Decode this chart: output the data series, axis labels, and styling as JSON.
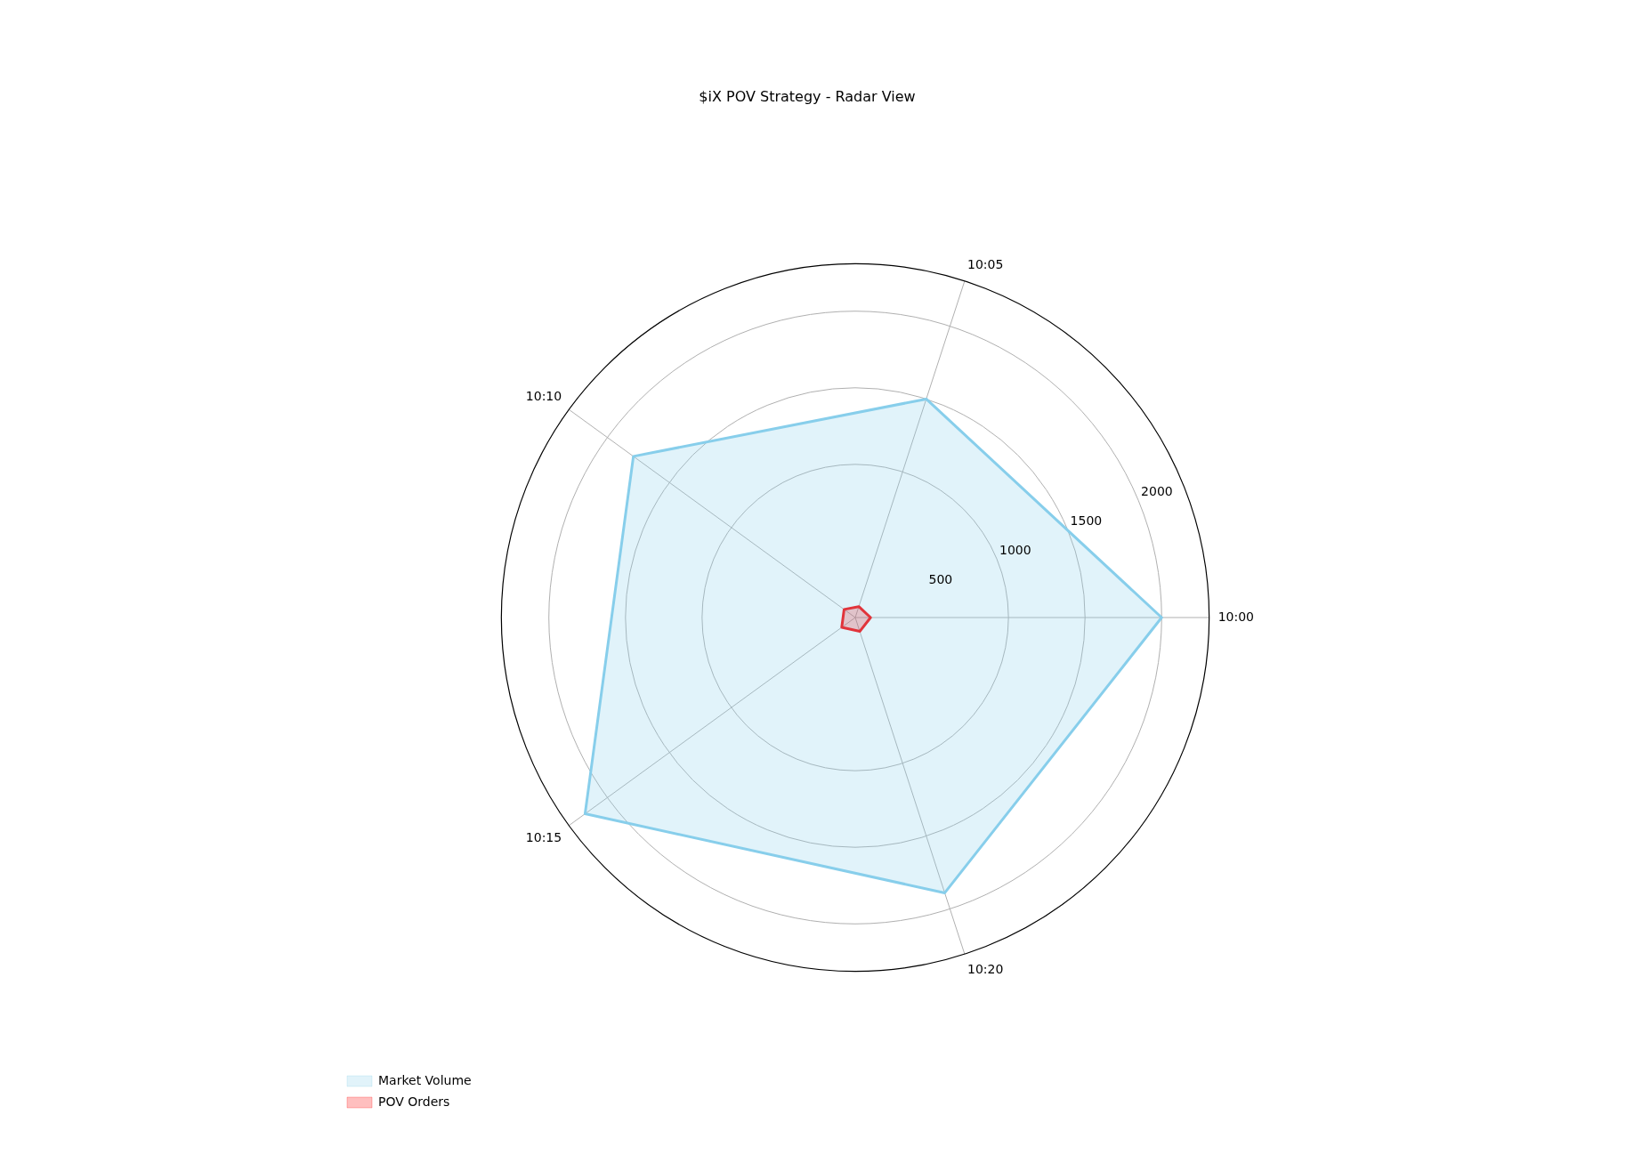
{
  "chart_data": {
    "type": "radar",
    "title": "$iX POV Strategy - Radar View",
    "categories": [
      "10:05",
      "10:00",
      "10:20",
      "10:15",
      "10:10"
    ],
    "series": [
      {
        "name": "Market Volume",
        "color": "#87ceeb",
        "values": [
          1500,
          2000,
          1890,
          2180,
          1790
        ]
      },
      {
        "name": "POV Orders",
        "color": "#ff0000",
        "values": [
          75,
          100,
          95,
          109,
          90
        ]
      }
    ],
    "ylim": [
      0,
      2310
    ],
    "yticks": [
      500,
      1000,
      1500,
      2000
    ],
    "grid": true,
    "legend": "bottom left"
  }
}
